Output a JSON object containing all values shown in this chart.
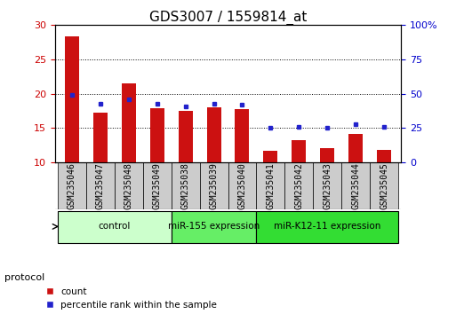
{
  "title": "GDS3007 / 1559814_at",
  "samples": [
    "GSM235046",
    "GSM235047",
    "GSM235048",
    "GSM235049",
    "GSM235038",
    "GSM235039",
    "GSM235040",
    "GSM235041",
    "GSM235042",
    "GSM235043",
    "GSM235044",
    "GSM235045"
  ],
  "count_values": [
    28.3,
    17.3,
    21.5,
    17.9,
    17.5,
    18.0,
    17.8,
    11.7,
    13.3,
    12.1,
    14.1,
    11.8
  ],
  "percentile_values": [
    49,
    43,
    46,
    43,
    41,
    43,
    42,
    25,
    26,
    25,
    28,
    26
  ],
  "ylim_left": [
    10,
    30
  ],
  "ylim_right": [
    0,
    100
  ],
  "yticks_left": [
    10,
    15,
    20,
    25,
    30
  ],
  "yticks_right": [
    0,
    25,
    50,
    75,
    100
  ],
  "groups": [
    {
      "label": "control",
      "start": 0,
      "end": 4,
      "color": "#ccffcc"
    },
    {
      "label": "miR-155 expression",
      "start": 4,
      "end": 7,
      "color": "#66ee66"
    },
    {
      "label": "miR-K12-11 expression",
      "start": 7,
      "end": 12,
      "color": "#33dd33"
    }
  ],
  "bar_color": "#cc1111",
  "dot_color": "#2222cc",
  "bar_width": 0.5,
  "title_fontsize": 11,
  "tick_label_fontsize": 7,
  "axis_label_color_left": "#cc0000",
  "axis_label_color_right": "#0000cc",
  "grid_color": "#000000",
  "plot_bg_color": "#ffffff",
  "sample_box_color": "#cccccc",
  "legend_count_label": "count",
  "legend_pct_label": "percentile rank within the sample",
  "protocol_label": "protocol"
}
